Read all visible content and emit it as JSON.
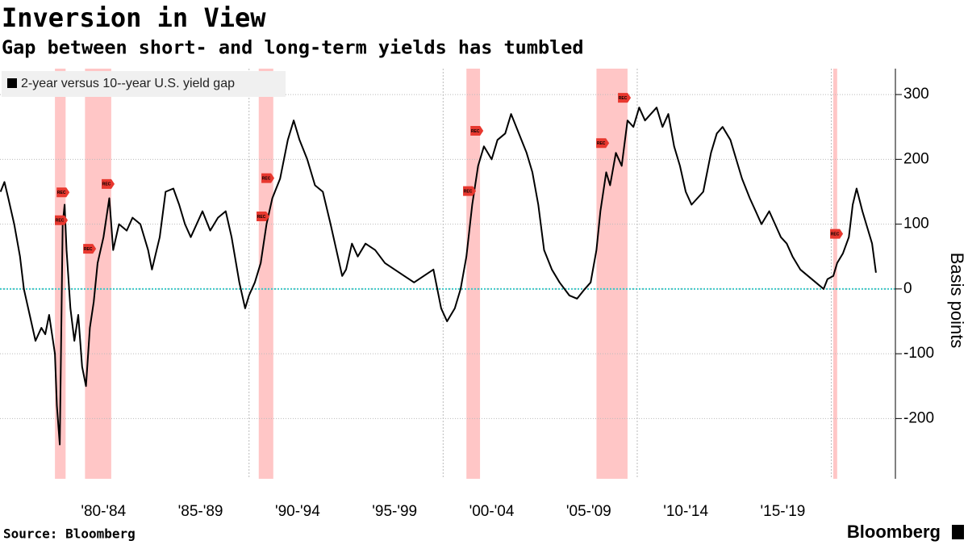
{
  "chart_data": {
    "type": "line",
    "title": "Inversion in View",
    "subtitle": "Gap between short- and long-term yields has tumbled",
    "y_axis_label": "Basis points",
    "source": "Source: Bloomberg",
    "branding": "Bloomberg",
    "x": [
      1977.2,
      1977.4,
      1977.6,
      1977.9,
      1978.2,
      1978.4,
      1978.7,
      1979.0,
      1979.3,
      1979.5,
      1979.7,
      1980.0,
      1980.1,
      1980.25,
      1980.4,
      1980.5,
      1980.6,
      1980.8,
      1981.0,
      1981.2,
      1981.4,
      1981.6,
      1981.8,
      1982.0,
      1982.2,
      1982.5,
      1982.8,
      1983.0,
      1983.3,
      1983.7,
      1984.0,
      1984.4,
      1984.8,
      1985.0,
      1985.4,
      1985.7,
      1986.1,
      1986.4,
      1986.7,
      1987.0,
      1987.3,
      1987.6,
      1988.0,
      1988.4,
      1988.8,
      1989.1,
      1989.5,
      1989.8,
      1990.0,
      1990.3,
      1990.6,
      1990.9,
      1991.2,
      1991.6,
      1992.0,
      1992.3,
      1992.6,
      1993.0,
      1993.4,
      1993.8,
      1994.2,
      1994.5,
      1994.8,
      1995.0,
      1995.3,
      1995.6,
      1996.0,
      1996.5,
      1997.0,
      1997.5,
      1998.0,
      1998.5,
      1999.0,
      1999.5,
      1999.9,
      2000.2,
      2000.6,
      2000.9,
      2001.2,
      2001.5,
      2001.8,
      2002.1,
      2002.5,
      2002.8,
      2003.2,
      2003.5,
      2003.9,
      2004.3,
      2004.6,
      2004.9,
      2005.2,
      2005.6,
      2006.0,
      2006.5,
      2006.9,
      2007.3,
      2007.6,
      2007.9,
      2008.1,
      2008.4,
      2008.6,
      2008.9,
      2009.2,
      2009.5,
      2009.8,
      2010.1,
      2010.4,
      2010.7,
      2011.0,
      2011.3,
      2011.6,
      2011.9,
      2012.2,
      2012.5,
      2012.8,
      2013.1,
      2013.4,
      2013.8,
      2014.1,
      2014.4,
      2014.8,
      2015.1,
      2015.4,
      2015.8,
      2016.1,
      2016.4,
      2016.8,
      2017.1,
      2017.4,
      2017.7,
      2018.0,
      2018.4,
      2018.8,
      2019.2,
      2019.6,
      2019.8,
      2020.1,
      2020.3,
      2020.6,
      2020.9,
      2021.1,
      2021.3,
      2021.6,
      2021.9,
      2022.1,
      2022.3
    ],
    "series": [
      {
        "name": "2-year versus 10--year U.S. yield gap",
        "color": "#000000",
        "values": [
          150,
          165,
          140,
          100,
          50,
          0,
          -40,
          -80,
          -60,
          -70,
          -40,
          -100,
          -180,
          -240,
          100,
          130,
          60,
          -30,
          -80,
          -40,
          -120,
          -150,
          -60,
          -20,
          40,
          80,
          140,
          60,
          100,
          90,
          110,
          100,
          60,
          30,
          80,
          150,
          155,
          130,
          100,
          80,
          100,
          120,
          90,
          110,
          120,
          80,
          10,
          -30,
          -10,
          10,
          40,
          100,
          140,
          170,
          230,
          260,
          230,
          200,
          160,
          150,
          100,
          60,
          20,
          30,
          70,
          50,
          70,
          60,
          40,
          30,
          20,
          10,
          20,
          30,
          -30,
          -50,
          -30,
          0,
          50,
          130,
          190,
          220,
          200,
          230,
          240,
          270,
          240,
          210,
          180,
          130,
          60,
          30,
          10,
          -10,
          -15,
          0,
          10,
          60,
          120,
          180,
          160,
          210,
          190,
          260,
          250,
          280,
          260,
          270,
          280,
          250,
          270,
          220,
          190,
          150,
          130,
          140,
          150,
          210,
          240,
          250,
          230,
          200,
          170,
          140,
          120,
          100,
          120,
          100,
          80,
          70,
          50,
          30,
          20,
          10,
          0,
          15,
          20,
          40,
          55,
          80,
          130,
          155,
          120,
          90,
          70,
          25
        ]
      }
    ],
    "xlim": [
      1977.17,
      2023.3
    ],
    "xticks": [
      {
        "value": 1982.5,
        "label": "'80-'84"
      },
      {
        "value": 1987.5,
        "label": "'85-'89"
      },
      {
        "value": 1992.5,
        "label": "'90-'94"
      },
      {
        "value": 1997.5,
        "label": "'95-'99"
      },
      {
        "value": 2002.5,
        "label": "'00-'04"
      },
      {
        "value": 2007.5,
        "label": "'05-'09"
      },
      {
        "value": 2012.5,
        "label": "'10-'14"
      },
      {
        "value": 2017.5,
        "label": "'15-'19"
      }
    ],
    "x_gridlines": [
      1990,
      2000,
      2010,
      2020
    ],
    "ylim": [
      -293,
      340
    ],
    "yticks": [
      -200,
      -100,
      0,
      100,
      200,
      300
    ],
    "grid": true,
    "zero_line": 0,
    "zero_line_color": "#3cc8c8",
    "recession_color": "#ffb3b3",
    "recessions": [
      [
        1980.0,
        1980.55
      ],
      [
        1981.55,
        1982.9
      ],
      [
        1990.5,
        1991.25
      ],
      [
        2001.2,
        2001.9
      ],
      [
        2007.9,
        2009.5
      ],
      [
        2020.1,
        2020.3
      ]
    ],
    "annotations": [
      {
        "x": 1980.42,
        "y": 149,
        "label": "REC"
      },
      {
        "x": 1980.33,
        "y": 106,
        "label": "REC"
      },
      {
        "x": 1981.79,
        "y": 62,
        "label": "REC"
      },
      {
        "x": 1982.74,
        "y": 162,
        "label": "REC"
      },
      {
        "x": 1990.97,
        "y": 171,
        "label": "REC"
      },
      {
        "x": 1990.72,
        "y": 112,
        "label": "REC"
      },
      {
        "x": 2001.36,
        "y": 151,
        "label": "REC"
      },
      {
        "x": 2001.74,
        "y": 244,
        "label": "REC"
      },
      {
        "x": 2008.22,
        "y": 225,
        "label": "REC"
      },
      {
        "x": 2009.34,
        "y": 295,
        "label": "REC"
      },
      {
        "x": 2020.27,
        "y": 85,
        "label": "REC"
      }
    ],
    "legend": "top-left"
  }
}
